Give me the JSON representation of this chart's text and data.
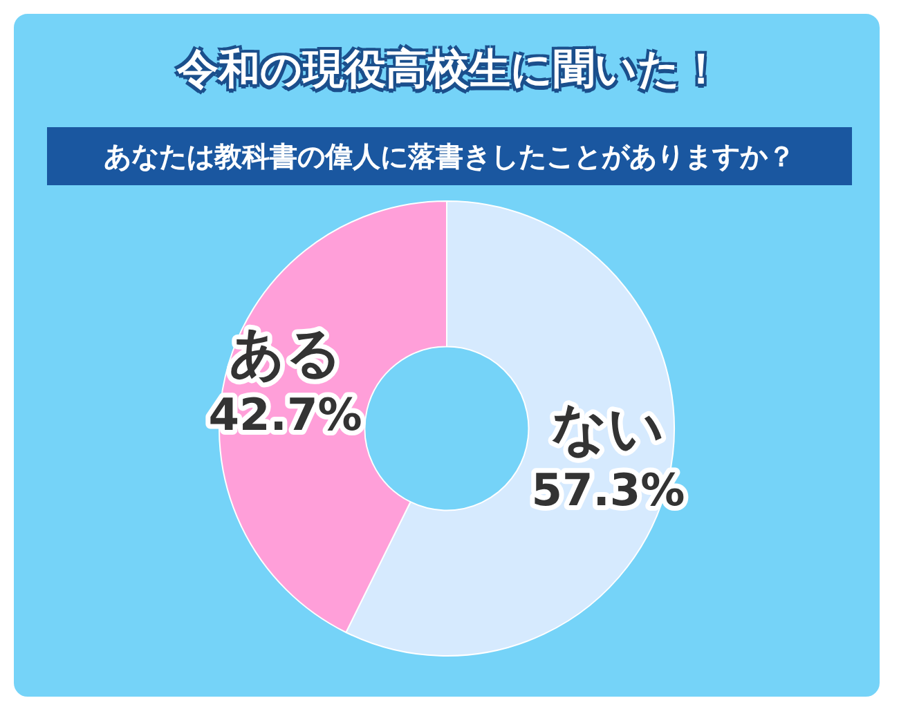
{
  "chart_data": {
    "type": "donut",
    "title": "令和の現役高校生に聞いた！",
    "subtitle": "あなたは教科書の偉人に落書きしたことがありますか？",
    "categories": [
      "ない",
      "ある"
    ],
    "values": [
      57.3,
      42.7
    ],
    "colors": [
      "#d6eafe",
      "#ff9fd9"
    ],
    "value_labels": [
      "57.3%",
      "42.7%"
    ],
    "legend": false
  }
}
